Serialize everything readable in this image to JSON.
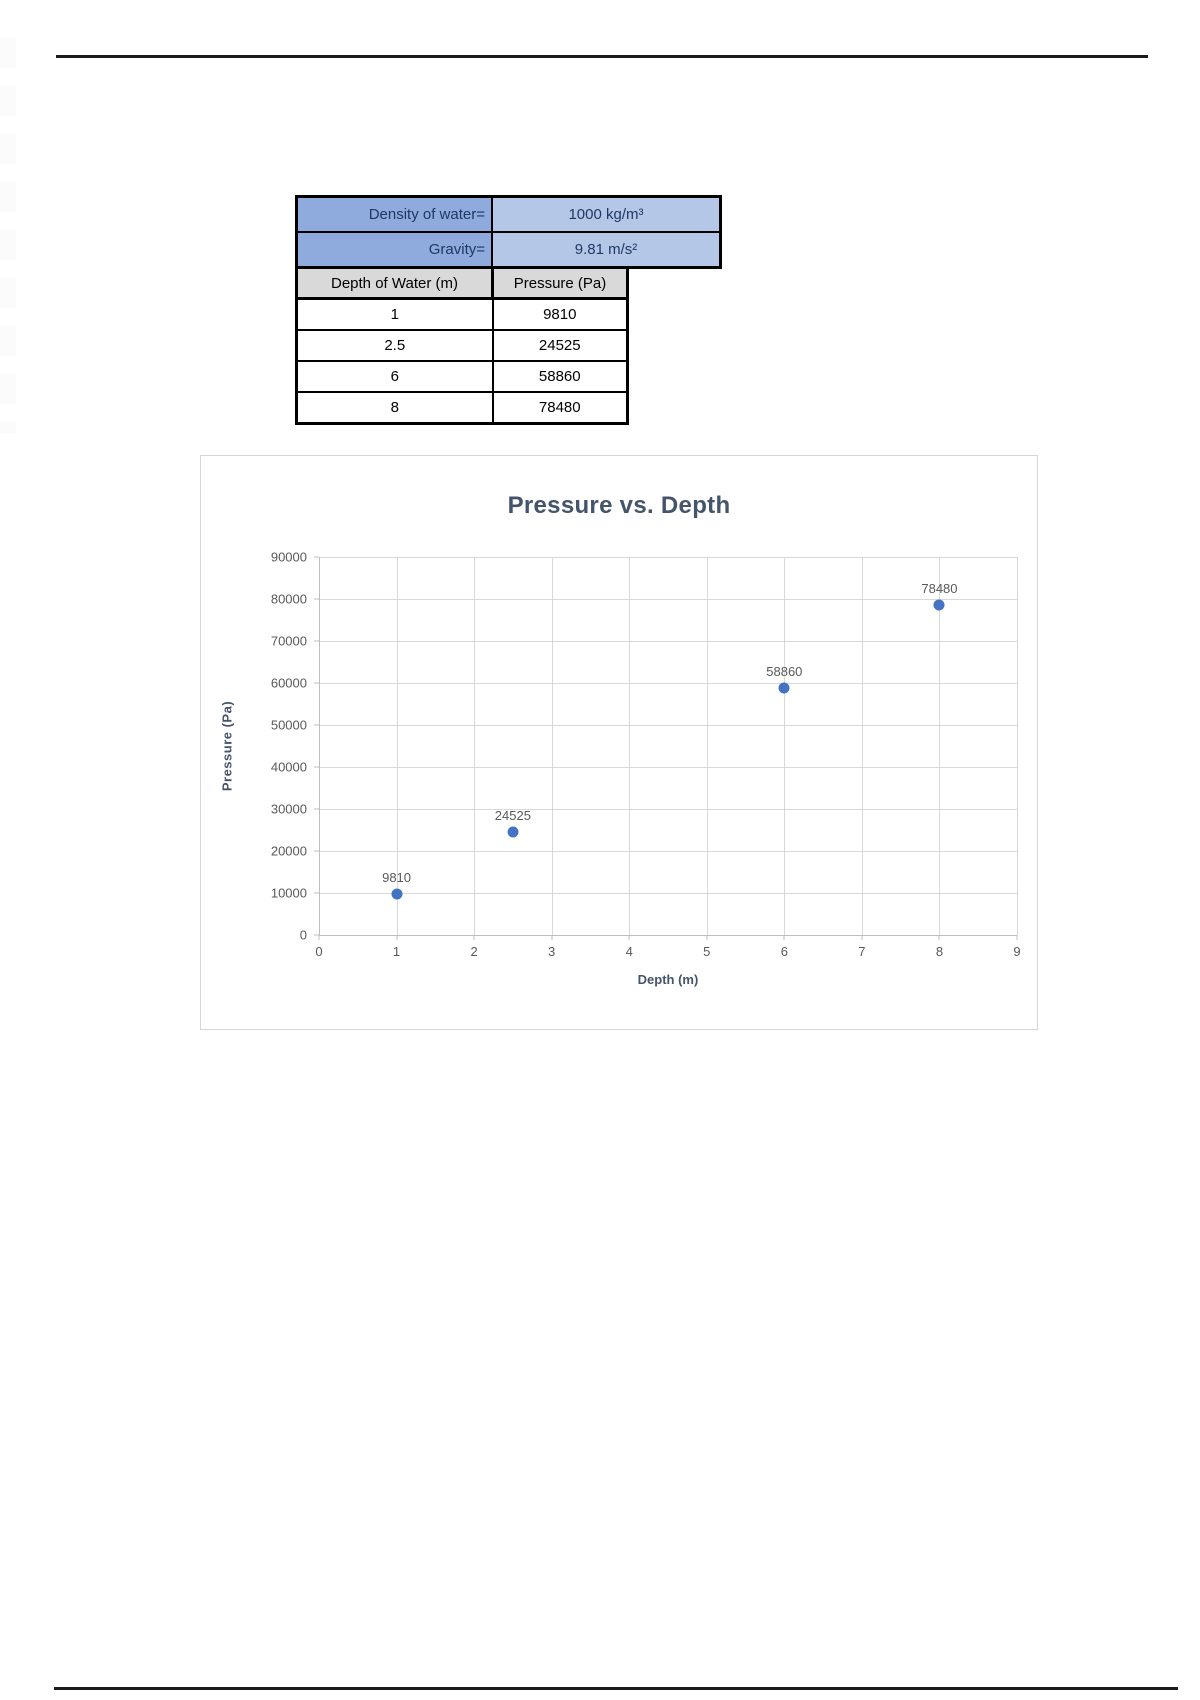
{
  "table": {
    "constants": [
      {
        "label": "Density of water=",
        "value": "1000 kg/m³"
      },
      {
        "label": "Gravity=",
        "value": "9.81 m/s²"
      }
    ],
    "headers": {
      "depth": "Depth of Water (m)",
      "pressure": "Pressure (Pa)"
    },
    "rows": [
      [
        "1",
        "9810"
      ],
      [
        "2.5",
        "24525"
      ],
      [
        "6",
        "58860"
      ],
      [
        "8",
        "78480"
      ]
    ],
    "colors": {
      "label_cell": "#8FAADC",
      "value_cell": "#B4C7E7",
      "header_cell": "#D9D9D9",
      "cell_text": "#1F3864"
    }
  },
  "chart_data": {
    "type": "scatter",
    "title": "Pressure vs. Depth",
    "xlabel": "Depth (m)",
    "ylabel": "Pressure (Pa)",
    "x": [
      1,
      2.5,
      6,
      8
    ],
    "y": [
      9810,
      24525,
      58860,
      78480
    ],
    "data_labels": [
      "9810",
      "24525",
      "58860",
      "78480"
    ],
    "xlim": [
      0,
      9
    ],
    "xstep": 1,
    "ylim": [
      0,
      90000
    ],
    "ystep": 10000,
    "grid": true,
    "legend": "none",
    "colors": {
      "marker": "#4472C4",
      "gridline": "#D9D9D9",
      "axis_line": "#BFBFBF",
      "tick_text": "#595959",
      "title_text": "#44546A",
      "axis_title_text": "#44546A",
      "data_label_text": "#595959"
    }
  }
}
